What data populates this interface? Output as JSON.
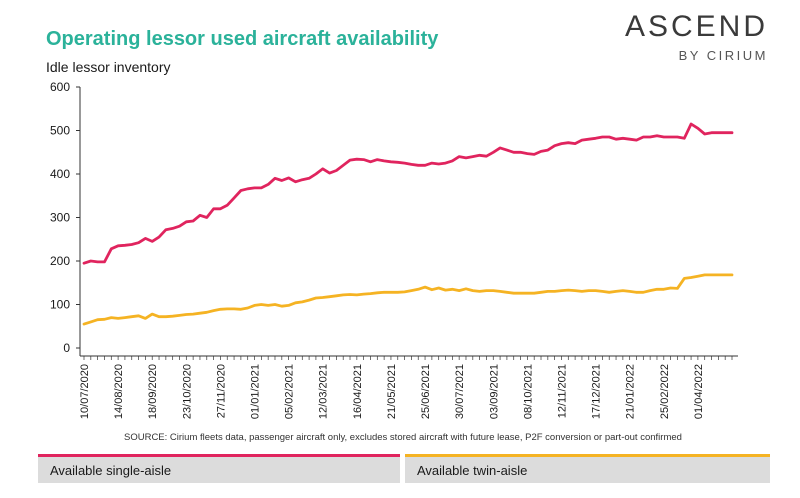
{
  "header": {
    "title": "Operating lessor used aircraft availability",
    "subtitle": "Idle lessor inventory",
    "brand_main": "ASCEND",
    "brand_sub": "BY CIRIUM"
  },
  "source": "SOURCE: Cirium fleets data, passenger aircraft only, excludes stored aircraft with future lease, P2F conversion or part-out confirmed",
  "legend": [
    {
      "label": "Available single-aisle",
      "color": "#e0245e"
    },
    {
      "label": "Available twin-aisle",
      "color": "#f5b323"
    }
  ],
  "chart_data": {
    "type": "line",
    "title": "Operating lessor used aircraft availability",
    "subtitle": "Idle lessor inventory",
    "ylim": [
      0,
      600
    ],
    "yticks": [
      0,
      100,
      200,
      300,
      400,
      500,
      600
    ],
    "grid": false,
    "legend_position": "bottom",
    "x_tick_labels": [
      "10/07/2020",
      "14/08/2020",
      "18/09/2020",
      "23/10/2020",
      "27/11/2020",
      "01/01/2021",
      "05/02/2021",
      "12/03/2021",
      "16/04/2021",
      "21/05/2021",
      "25/06/2021",
      "30/07/2021",
      "03/09/2021",
      "08/10/2021",
      "12/11/2021",
      "17/12/2021",
      "21/01/2022",
      "25/02/2022",
      "01/04/2022"
    ],
    "x_tick_index": [
      0,
      5,
      10,
      15,
      20,
      25,
      30,
      35,
      40,
      45,
      50,
      55,
      60,
      65,
      70,
      75,
      80,
      85,
      90
    ],
    "n_points": 96,
    "series": [
      {
        "name": "Available single-aisle",
        "color": "#e0245e",
        "values": [
          195,
          200,
          198,
          198,
          228,
          235,
          236,
          238,
          242,
          252,
          245,
          255,
          272,
          275,
          280,
          290,
          292,
          305,
          300,
          320,
          320,
          328,
          345,
          362,
          366,
          368,
          368,
          376,
          390,
          385,
          391,
          382,
          387,
          390,
          400,
          412,
          402,
          408,
          420,
          432,
          434,
          433,
          428,
          433,
          430,
          428,
          427,
          425,
          422,
          420,
          420,
          425,
          423,
          425,
          430,
          440,
          437,
          440,
          443,
          441,
          450,
          460,
          455,
          450,
          450,
          447,
          445,
          452,
          455,
          465,
          470,
          472,
          470,
          478,
          480,
          482,
          485,
          485,
          480,
          482,
          480,
          478,
          485,
          485,
          488,
          485,
          485,
          485,
          482,
          515,
          505,
          492,
          495,
          495,
          495,
          495
        ]
      },
      {
        "name": "Available twin-aisle",
        "color": "#f5b323",
        "values": [
          55,
          60,
          65,
          66,
          70,
          68,
          70,
          72,
          74,
          68,
          78,
          72,
          72,
          73,
          75,
          77,
          78,
          80,
          82,
          86,
          89,
          90,
          90,
          89,
          92,
          98,
          100,
          98,
          100,
          96,
          98,
          104,
          106,
          110,
          115,
          116,
          118,
          120,
          122,
          123,
          122,
          124,
          125,
          127,
          128,
          128,
          128,
          129,
          132,
          135,
          140,
          134,
          138,
          133,
          135,
          132,
          136,
          132,
          130,
          132,
          132,
          130,
          128,
          126,
          126,
          126,
          126,
          128,
          130,
          130,
          132,
          133,
          132,
          130,
          132,
          132,
          130,
          128,
          130,
          132,
          130,
          128,
          128,
          132,
          135,
          135,
          138,
          137,
          160,
          162,
          165,
          168,
          168,
          168,
          168,
          168
        ]
      }
    ]
  }
}
